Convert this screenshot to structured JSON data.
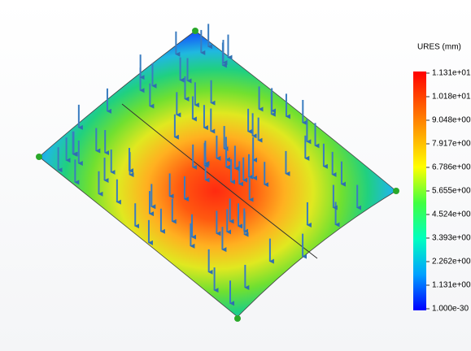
{
  "legend": {
    "title": "URES (mm)",
    "labels": [
      "1.131e+01",
      "1.018e+01",
      "9.048e+00",
      "7.917e+00",
      "6.786e+00",
      "5.655e+00",
      "4.524e+00",
      "3.393e+00",
      "2.262e+00",
      "1.131e+00",
      "1.000e-30"
    ]
  }
}
